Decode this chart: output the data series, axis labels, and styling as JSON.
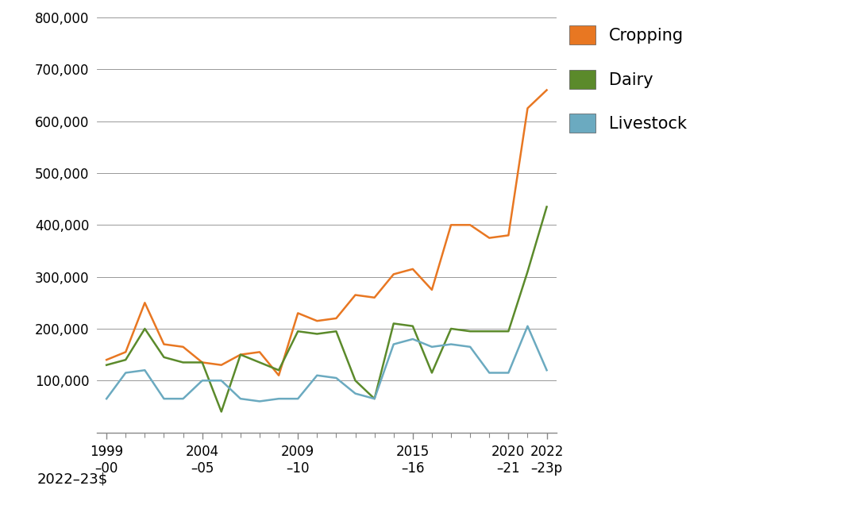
{
  "years": [
    0,
    1,
    2,
    3,
    4,
    5,
    6,
    7,
    8,
    9,
    10,
    11,
    12,
    13,
    14,
    15,
    16,
    17,
    18,
    19,
    20,
    21,
    22,
    23
  ],
  "x_major_labels": [
    "1999\n–00",
    "2004\n–05",
    "2009\n–10",
    "2015\n–16",
    "2020\n–21",
    "2022\n–23p"
  ],
  "x_major_positions": [
    0,
    5,
    10,
    16,
    21,
    23
  ],
  "cropping": [
    140000,
    155000,
    250000,
    170000,
    165000,
    135000,
    130000,
    150000,
    155000,
    110000,
    230000,
    215000,
    220000,
    265000,
    260000,
    305000,
    315000,
    275000,
    400000,
    400000,
    375000,
    380000,
    625000,
    660000
  ],
  "dairy": [
    130000,
    140000,
    200000,
    145000,
    135000,
    135000,
    40000,
    150000,
    135000,
    120000,
    195000,
    190000,
    195000,
    100000,
    65000,
    210000,
    205000,
    115000,
    200000,
    195000,
    195000,
    195000,
    310000,
    435000
  ],
  "livestock": [
    65000,
    115000,
    120000,
    65000,
    65000,
    100000,
    100000,
    65000,
    60000,
    65000,
    65000,
    110000,
    105000,
    75000,
    65000,
    170000,
    180000,
    165000,
    170000,
    165000,
    115000,
    115000,
    205000,
    120000
  ],
  "cropping_color": "#E87722",
  "dairy_color": "#5B8A2B",
  "livestock_color": "#6BAAC0",
  "line_width": 1.8,
  "ylim": [
    0,
    800000
  ],
  "yticks": [
    100000,
    200000,
    300000,
    400000,
    500000,
    600000,
    700000,
    800000
  ],
  "ylabel": "2022–23$",
  "legend_labels": [
    "Cropping",
    "Dairy",
    "Livestock"
  ],
  "background_color": "#ffffff",
  "grid_color": "#888888",
  "spine_color": "#888888",
  "tick_color": "#333333",
  "label_fontsize": 13,
  "tick_fontsize": 12,
  "legend_fontsize": 15
}
